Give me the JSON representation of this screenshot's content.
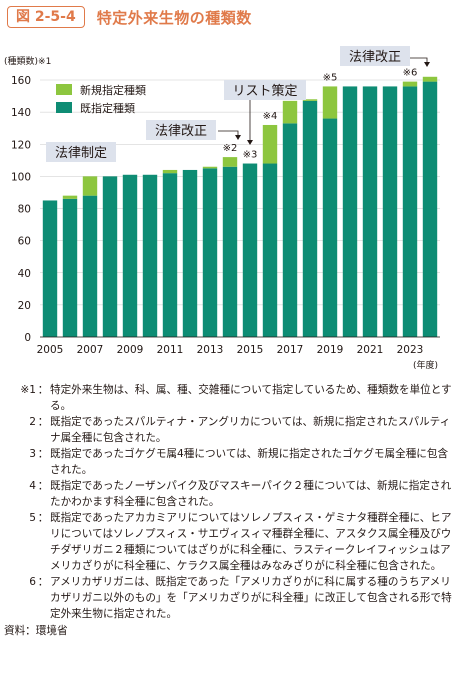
{
  "header": {
    "figure_label": "図 2-5-4",
    "title": "特定外来生物の種類数"
  },
  "chart_data": {
    "type": "bar",
    "stacked": true,
    "ylabel": "(種類数)※1",
    "xlabel": "(年度)",
    "ylim": [
      0,
      160
    ],
    "yticks": [
      0,
      20,
      40,
      60,
      80,
      100,
      120,
      140,
      160
    ],
    "categories": [
      "2005",
      "2006",
      "2007",
      "2008",
      "2009",
      "2010",
      "2011",
      "2012",
      "2013",
      "2014",
      "2015",
      "2016",
      "2017",
      "2018",
      "2019",
      "2020",
      "2021",
      "2022",
      "2023",
      "2024"
    ],
    "tick_labels": [
      "2005",
      "2007",
      "2009",
      "2011",
      "2013",
      "2015",
      "2017",
      "2019",
      "2021",
      "2023"
    ],
    "series": [
      {
        "name": "既指定種類",
        "color": "#0e8c74",
        "values": [
          85,
          86,
          88,
          100,
          101,
          101,
          102,
          104,
          105,
          106,
          108,
          108,
          133,
          147,
          136,
          156,
          156,
          156,
          156,
          159
        ]
      },
      {
        "name": "新規指定種類",
        "color": "#8dc63f",
        "values": [
          0,
          2,
          12,
          0,
          0,
          0,
          2,
          0,
          1,
          6,
          0,
          24,
          14,
          1,
          20,
          0,
          0,
          0,
          3,
          3
        ]
      }
    ],
    "legend_position": "top-left",
    "annotations": [
      {
        "text": "法律制定",
        "boxed": true,
        "at": "2005"
      },
      {
        "text": "法律改正",
        "boxed": true,
        "at": "2014"
      },
      {
        "text": "リスト策定",
        "boxed": true,
        "at": "2015"
      },
      {
        "text": "法律改正",
        "boxed": true,
        "at": "2023"
      },
      {
        "text": "※2",
        "at": "2014"
      },
      {
        "text": "※3",
        "at": "2015"
      },
      {
        "text": "※4",
        "at": "2016"
      },
      {
        "text": "※5",
        "at": "2019"
      },
      {
        "text": "※6",
        "at": "2023"
      }
    ]
  },
  "notes": [
    {
      "mark": "※1",
      "text": "特定外来生物は、科、属、種、交雑種について指定しているため、種類数を単位とする。"
    },
    {
      "mark": "2",
      "text": "既指定であったスパルティナ・アングリカについては、新規に指定されたスパルティナ属全種に包含された。"
    },
    {
      "mark": "3",
      "text": "既指定であったゴケグモ属4種については、新規に指定されたゴケグモ属全種に包含された。"
    },
    {
      "mark": "4",
      "text": "既指定であったノーザンパイク及びマスキーパイク２種については、新規に指定されたかわかます科全種に包含された。"
    },
    {
      "mark": "5",
      "text": "既指定であったアカカミアリについてはソレノプスィス・ゲミナタ種群全種に、ヒアリについてはソレノプスィス・サエヴィスィマ種群全種に、アスタクス属全種及びウチダザリガニ２種類についてはざりがに科全種に、ラスティークレイフィッシュはアメリカざりがに科全種に、ケラクス属全種はみなみざりがに科全種に包含された。"
    },
    {
      "mark": "6",
      "text": "アメリカザリガニは、既指定であった「アメリカざりがに科に属する種のうちアメリカザリガニ以外のもの」を「アメリカざりがに科全種」に改正して包含される形で特定外来生物に指定された。"
    }
  ],
  "source": "資料：環境省"
}
